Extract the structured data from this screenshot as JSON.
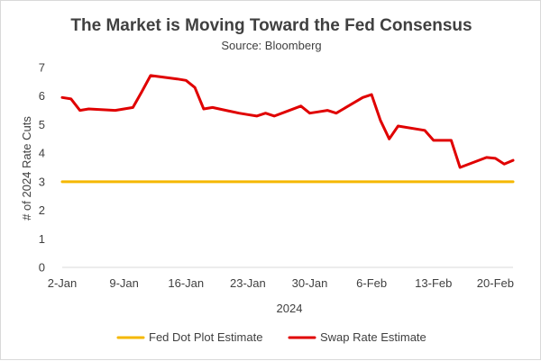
{
  "chart_data": {
    "type": "line",
    "title": "The Market is Moving Toward the Fed Consensus",
    "subtitle": "Source: Bloomberg",
    "xlabel": "2024",
    "ylabel": "# of 2024 Rate Cuts",
    "ylim": [
      0,
      7
    ],
    "yticks": [
      0,
      1,
      2,
      3,
      4,
      5,
      6,
      7
    ],
    "xlim": [
      "2024-01-02",
      "2024-02-22"
    ],
    "xticks": [
      {
        "date": "2024-01-02",
        "label": "2-Jan"
      },
      {
        "date": "2024-01-09",
        "label": "9-Jan"
      },
      {
        "date": "2024-01-16",
        "label": "16-Jan"
      },
      {
        "date": "2024-01-23",
        "label": "23-Jan"
      },
      {
        "date": "2024-01-30",
        "label": "30-Jan"
      },
      {
        "date": "2024-02-06",
        "label": "6-Feb"
      },
      {
        "date": "2024-02-13",
        "label": "13-Feb"
      },
      {
        "date": "2024-02-20",
        "label": "20-Feb"
      }
    ],
    "grid": false,
    "legend_position": "bottom",
    "series": [
      {
        "name": "Fed Dot Plot Estimate",
        "color": "#f5b800",
        "x": [
          "2024-01-02",
          "2024-02-22"
        ],
        "y": [
          3,
          3
        ]
      },
      {
        "name": "Swap Rate Estimate",
        "color": "#e00000",
        "x": [
          "2024-01-02",
          "2024-01-03",
          "2024-01-04",
          "2024-01-05",
          "2024-01-08",
          "2024-01-09",
          "2024-01-10",
          "2024-01-11",
          "2024-01-12",
          "2024-01-15",
          "2024-01-16",
          "2024-01-17",
          "2024-01-18",
          "2024-01-19",
          "2024-01-22",
          "2024-01-23",
          "2024-01-24",
          "2024-01-25",
          "2024-01-26",
          "2024-01-29",
          "2024-01-30",
          "2024-01-31",
          "2024-02-01",
          "2024-02-02",
          "2024-02-05",
          "2024-02-06",
          "2024-02-07",
          "2024-02-08",
          "2024-02-09",
          "2024-02-12",
          "2024-02-13",
          "2024-02-14",
          "2024-02-15",
          "2024-02-16",
          "2024-02-19",
          "2024-02-20",
          "2024-02-21",
          "2024-02-22"
        ],
        "y": [
          5.95,
          5.9,
          5.5,
          5.55,
          5.5,
          5.55,
          5.6,
          6.15,
          6.72,
          6.6,
          6.55,
          6.3,
          5.55,
          5.6,
          5.4,
          5.35,
          5.3,
          5.4,
          5.3,
          5.65,
          5.4,
          5.45,
          5.5,
          5.4,
          5.95,
          6.05,
          5.15,
          4.5,
          4.95,
          4.8,
          4.45,
          4.45,
          4.45,
          3.5,
          3.85,
          3.82,
          3.62,
          3.75
        ]
      }
    ]
  }
}
